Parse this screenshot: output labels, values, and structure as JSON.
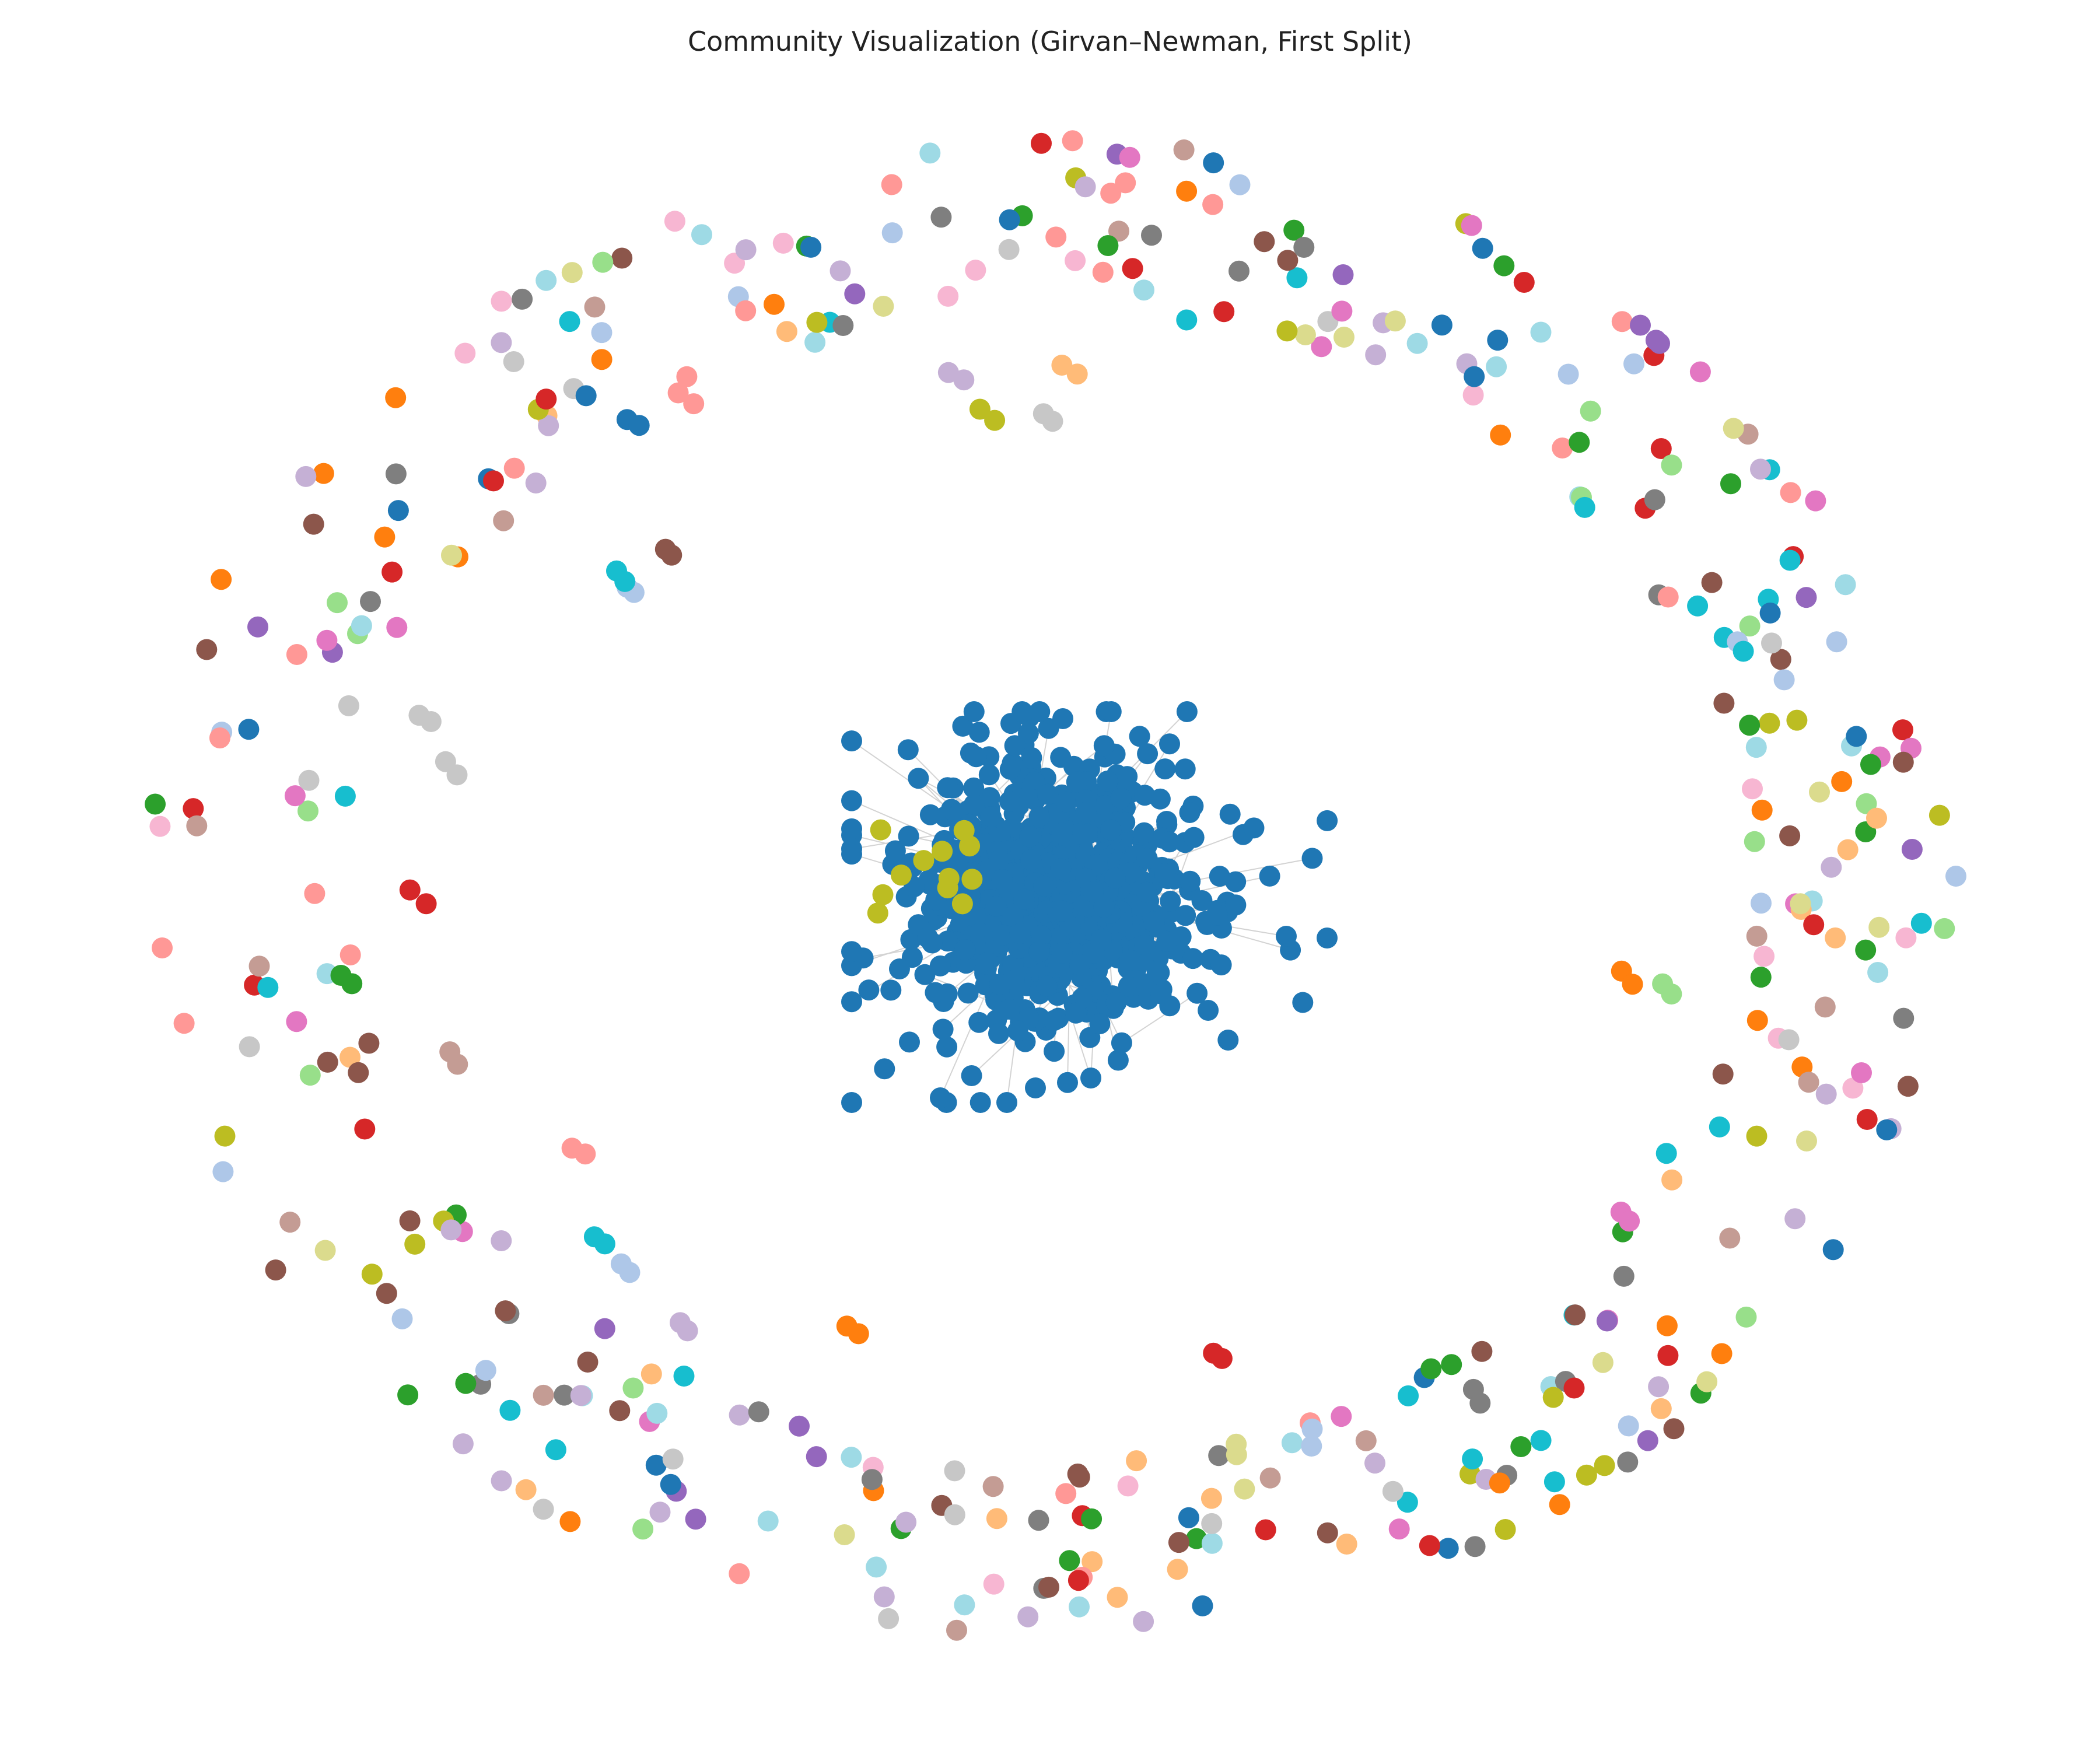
{
  "title": "Community Visualization (Girvan–Newman, First Split)",
  "edge_color": "#d3d3d3",
  "palette": [
    "#1f77b4",
    "#aec7e8",
    "#ff7f0e",
    "#ffbb78",
    "#2ca02c",
    "#98df8a",
    "#d62728",
    "#ff9896",
    "#9467bd",
    "#c5b0d5",
    "#8c564b",
    "#c49c94",
    "#e377c2",
    "#f7b6d2",
    "#7f7f7f",
    "#c7c7c7",
    "#bcbd22",
    "#dbdb8d",
    "#17becf",
    "#9edae5"
  ],
  "main_component": {
    "color": "#1f77b4",
    "nodes": 900,
    "minor_color": "#bcbd22",
    "minor_nodes": 12
  },
  "peripheral": {
    "isolated_nodes": 420,
    "small_pairs": 24
  }
}
